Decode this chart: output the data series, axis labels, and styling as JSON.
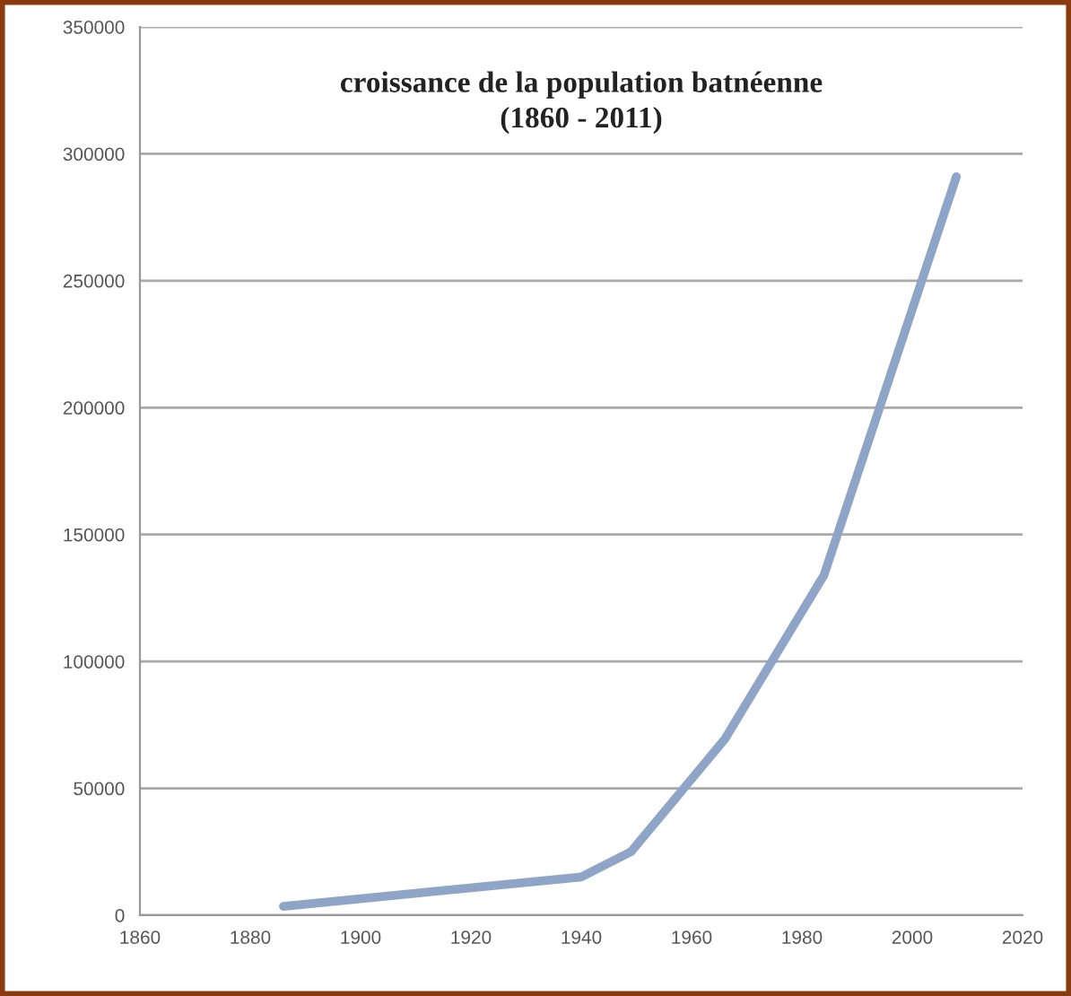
{
  "chart_data": {
    "type": "line",
    "title": "croissance de la population batnéenne\n(1860 - 2011)",
    "x": [
      1886,
      1940,
      1949,
      1966,
      1984,
      2008
    ],
    "series": [
      {
        "color": "#8ea5c8",
        "values": [
          3500,
          15100,
          25000,
          69300,
          134000,
          291000
        ]
      }
    ],
    "xlim": [
      1860,
      2020
    ],
    "xticks": [
      1860,
      1880,
      1900,
      1920,
      1940,
      1960,
      1980,
      2000,
      2020
    ],
    "ylim": [
      0,
      350000
    ],
    "yticks": [
      0,
      50000,
      100000,
      150000,
      200000,
      250000,
      300000,
      350000
    ],
    "grid": "y",
    "marker": "none",
    "line_style": "solid"
  }
}
